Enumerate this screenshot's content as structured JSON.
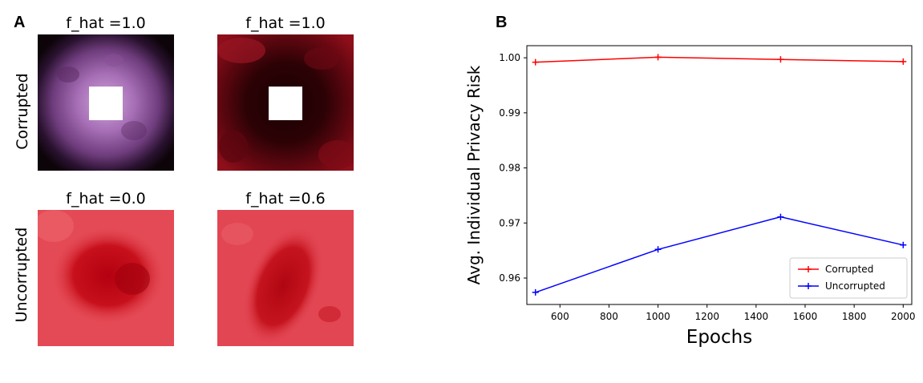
{
  "panel_a": {
    "letter": "A",
    "row_labels": [
      "Corrupted",
      "Uncorrupted"
    ],
    "image_titles": [
      "f_hat =1.0",
      "f_hat =1.0",
      "f_hat =0.0",
      "f_hat =0.6"
    ]
  },
  "panel_b": {
    "letter": "B"
  },
  "chart_data": {
    "type": "line",
    "xlabel": "Epochs",
    "ylabel": "Avg. Individual Privacy Risk",
    "xlim": [
      465,
      2035
    ],
    "ylim": [
      0.9552,
      1.0022
    ],
    "xticks": [
      600,
      800,
      1000,
      1200,
      1400,
      1600,
      1800,
      2000
    ],
    "yticks": [
      0.96,
      0.97,
      0.98,
      0.99,
      1.0
    ],
    "ytick_labels": [
      "0.96",
      "0.97",
      "0.98",
      "0.99",
      "1.00"
    ],
    "x": [
      500,
      1000,
      1500,
      2000
    ],
    "series": [
      {
        "name": "Corrupted",
        "color": "#ff0000",
        "values": [
          0.9992,
          1.0001,
          0.9997,
          0.9993
        ]
      },
      {
        "name": "Uncorrupted",
        "color": "#0000ff",
        "values": [
          0.9574,
          0.9652,
          0.9711,
          0.966
        ]
      }
    ],
    "legend_position": "lower-right",
    "marker": "+"
  }
}
